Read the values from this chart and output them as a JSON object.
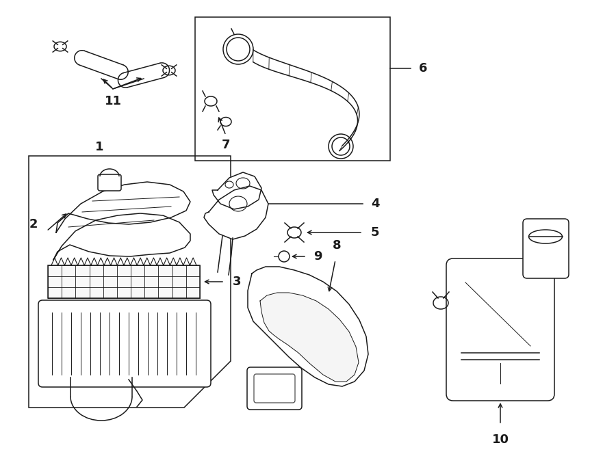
{
  "bg_color": "#ffffff",
  "line_color": "#1a1a1a",
  "fig_width": 9.0,
  "fig_height": 6.61,
  "dpi": 100,
  "lw": 1.1,
  "fs": 13
}
